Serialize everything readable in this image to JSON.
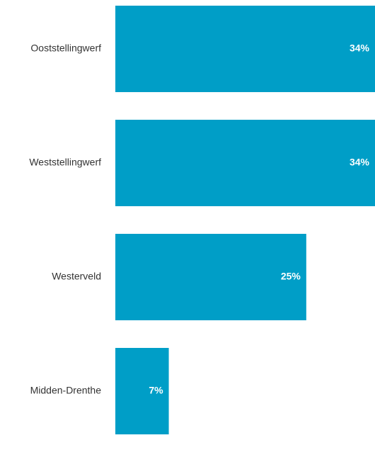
{
  "chart_data": {
    "type": "bar",
    "orientation": "horizontal",
    "categories": [
      "Ooststellingwerf",
      "Weststellingwerf",
      "Westerveld",
      "Midden-Drenthe"
    ],
    "values": [
      34,
      34,
      25,
      7
    ],
    "value_labels": [
      "34%",
      "34%",
      "25%",
      "7%"
    ],
    "title": "",
    "xlabel": "",
    "ylabel": "",
    "xlim": [
      0,
      34
    ],
    "grid": false,
    "bar_color": "#009ec7",
    "value_label_color": "#ffffff"
  }
}
